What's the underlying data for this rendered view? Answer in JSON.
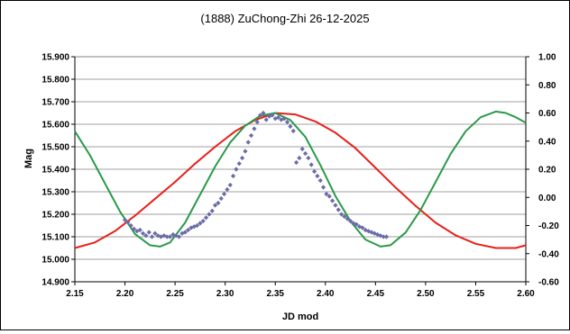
{
  "chart_data": {
    "type": "scatter",
    "title": "(1888) ZuChong-Zhi 26-12-2025",
    "xlabel": "JD mod",
    "ylabel": "Mag",
    "y2label": "",
    "xlim": [
      2.15,
      2.6
    ],
    "ylim": [
      14.9,
      15.9
    ],
    "y2lim": [
      -0.6,
      1.0
    ],
    "x_ticks": [
      "2.15",
      "2.20",
      "2.25",
      "2.30",
      "2.35",
      "2.40",
      "2.45",
      "2.50",
      "2.55",
      "2.60"
    ],
    "y_ticks": [
      "14.900",
      "15.000",
      "15.100",
      "15.200",
      "15.300",
      "15.400",
      "15.500",
      "15.600",
      "15.700",
      "15.800",
      "15.900"
    ],
    "y2_ticks": [
      "-0.60",
      "-0.40",
      "-0.20",
      "0.00",
      "0.20",
      "0.40",
      "0.60",
      "0.80",
      "1.00"
    ],
    "grid": "horizontal",
    "colors": {
      "observations": "#6b6ba8",
      "red_curve": "#e8201a",
      "green_curve": "#2a9a4a"
    },
    "series": [
      {
        "kind": "scatter",
        "x": [
          2.2,
          2.203,
          2.206,
          2.209,
          2.212,
          2.215,
          2.218,
          2.221,
          2.224,
          2.227,
          2.23,
          2.233,
          2.236,
          2.239,
          2.242,
          2.245,
          2.248,
          2.251,
          2.254,
          2.257,
          2.26,
          2.263,
          2.266,
          2.269,
          2.272,
          2.275,
          2.278,
          2.281,
          2.284,
          2.287,
          2.29,
          2.293,
          2.296,
          2.299,
          2.302,
          2.305,
          2.308,
          2.311,
          2.314,
          2.317,
          2.32,
          2.323,
          2.326,
          2.329,
          2.332,
          2.335,
          2.338,
          2.341,
          2.344,
          2.347,
          2.35,
          2.353,
          2.356,
          2.359,
          2.362,
          2.365,
          2.368,
          2.371,
          2.374,
          2.377,
          2.38,
          2.383,
          2.386,
          2.389,
          2.392,
          2.395,
          2.398,
          2.401,
          2.404,
          2.407,
          2.41,
          2.413,
          2.416,
          2.419,
          2.422,
          2.425,
          2.428,
          2.431,
          2.434,
          2.437,
          2.44,
          2.443,
          2.446,
          2.449,
          2.452,
          2.455,
          2.458,
          2.461
        ],
        "y": [
          15.175,
          15.165,
          15.15,
          15.135,
          15.125,
          15.13,
          15.115,
          15.105,
          15.12,
          15.1,
          15.115,
          15.105,
          15.1,
          15.105,
          15.1,
          15.1,
          15.11,
          15.105,
          15.1,
          15.115,
          15.12,
          15.13,
          15.14,
          15.145,
          15.15,
          15.16,
          15.17,
          15.185,
          15.2,
          15.215,
          15.24,
          15.25,
          15.27,
          15.29,
          15.31,
          15.33,
          15.37,
          15.4,
          15.425,
          15.45,
          15.48,
          15.52,
          15.55,
          15.58,
          15.61,
          15.64,
          15.65,
          15.62,
          15.635,
          15.64,
          15.625,
          15.63,
          15.62,
          15.625,
          15.61,
          15.59,
          15.57,
          15.43,
          15.45,
          15.49,
          15.47,
          15.45,
          15.42,
          15.39,
          15.37,
          15.35,
          15.32,
          15.29,
          15.28,
          15.26,
          15.24,
          15.22,
          15.2,
          15.19,
          15.18,
          15.17,
          15.16,
          15.155,
          15.145,
          15.14,
          15.13,
          15.125,
          15.12,
          15.115,
          15.11,
          15.105,
          15.1,
          15.1
        ]
      },
      {
        "kind": "line",
        "axis": "right",
        "x": [
          2.15,
          2.17,
          2.19,
          2.21,
          2.23,
          2.25,
          2.27,
          2.29,
          2.31,
          2.33,
          2.35,
          2.37,
          2.39,
          2.41,
          2.43,
          2.45,
          2.47,
          2.49,
          2.51,
          2.53,
          2.55,
          2.57,
          2.59,
          2.6
        ],
        "y": [
          -0.36,
          -0.32,
          -0.24,
          -0.13,
          -0.01,
          0.11,
          0.24,
          0.36,
          0.47,
          0.55,
          0.6,
          0.59,
          0.54,
          0.46,
          0.35,
          0.21,
          0.07,
          -0.06,
          -0.18,
          -0.27,
          -0.33,
          -0.36,
          -0.36,
          -0.34
        ]
      },
      {
        "kind": "line",
        "axis": "right",
        "x": [
          2.15,
          2.165,
          2.18,
          2.195,
          2.21,
          2.225,
          2.235,
          2.245,
          2.26,
          2.275,
          2.29,
          2.305,
          2.32,
          2.335,
          2.35,
          2.365,
          2.38,
          2.395,
          2.41,
          2.425,
          2.44,
          2.455,
          2.465,
          2.48,
          2.495,
          2.51,
          2.525,
          2.54,
          2.555,
          2.57,
          2.58,
          2.59,
          2.6
        ],
        "y": [
          0.47,
          0.3,
          0.1,
          -0.1,
          -0.26,
          -0.34,
          -0.35,
          -0.32,
          -0.18,
          0.02,
          0.22,
          0.39,
          0.51,
          0.58,
          0.6,
          0.55,
          0.43,
          0.23,
          0.01,
          -0.17,
          -0.3,
          -0.35,
          -0.34,
          -0.25,
          -0.09,
          0.11,
          0.31,
          0.47,
          0.57,
          0.61,
          0.6,
          0.57,
          0.53
        ]
      }
    ]
  }
}
